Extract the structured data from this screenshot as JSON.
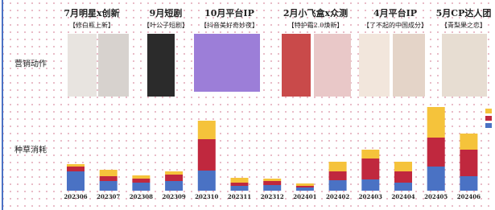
{
  "labels": {
    "marketing": "营销动作",
    "spend": "种草消耗"
  },
  "annotations": [
    {
      "title": "7月明星x创新",
      "subtitle": "【修白瓶上新】"
    },
    {
      "title": "9月短剧",
      "subtitle": "【叶公子短剧】"
    },
    {
      "title": "10月平台IP",
      "subtitle": "【抖音美好奇妙夜】"
    },
    {
      "title": "2月小飞盒x众测",
      "subtitle": "【特护霜2.0焕新】"
    },
    {
      "title": "4月平台IP",
      "subtitle": "【了不起的中国成分】"
    },
    {
      "title": "5月CP达人团",
      "subtitle": "【青梨果之恋】"
    }
  ],
  "chart_data": {
    "type": "stacked_bar",
    "categories": [
      "202306",
      "202307",
      "202308",
      "202309",
      "202310",
      "202311",
      "202312",
      "202401",
      "202402",
      "202403",
      "202404",
      "202405",
      "202406"
    ],
    "series": [
      {
        "color": "#4a72c4",
        "values": [
          24,
          12,
          10,
          12,
          25,
          6,
          7,
          4,
          13,
          14,
          10,
          30,
          18
        ]
      },
      {
        "color": "#c0283e",
        "values": [
          6,
          6,
          5,
          8,
          39,
          4,
          5,
          2,
          11,
          26,
          14,
          36,
          33
        ]
      },
      {
        "color": "#f5c33b",
        "values": [
          3,
          8,
          4,
          4,
          23,
          6,
          3,
          3,
          12,
          11,
          12,
          38,
          20
        ]
      }
    ]
  }
}
